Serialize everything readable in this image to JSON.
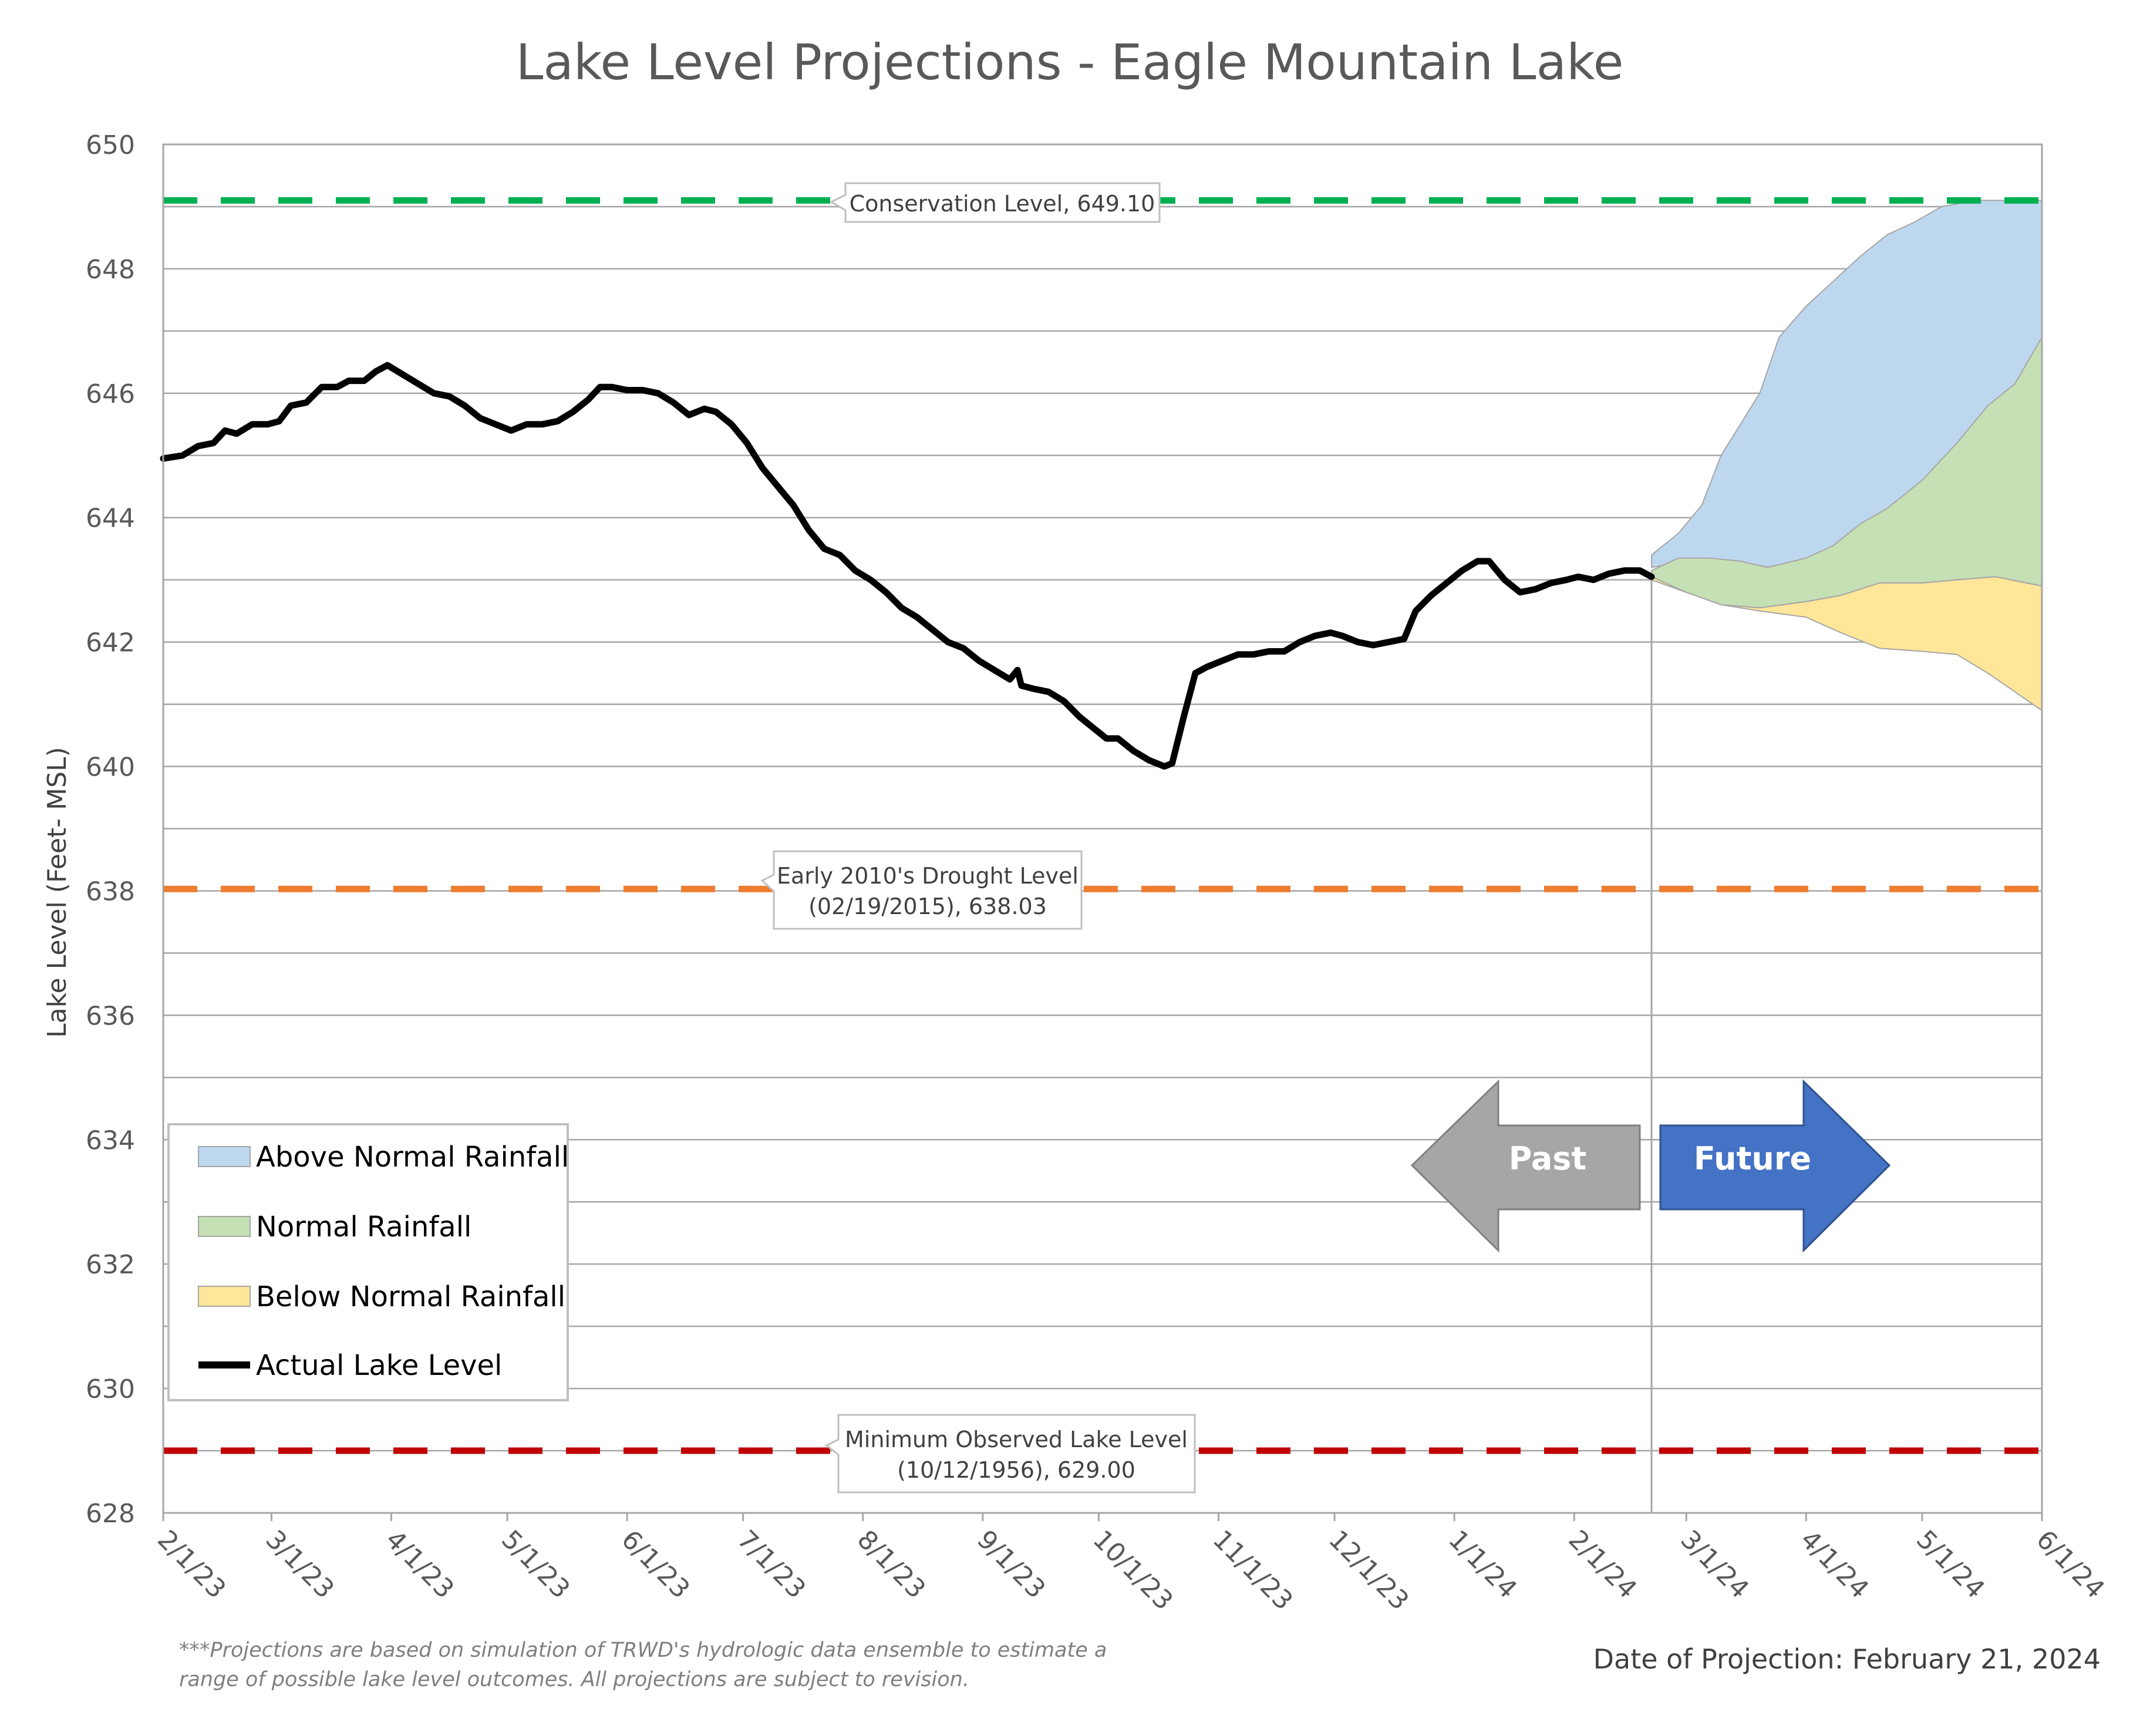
{
  "chart_data": {
    "type": "line",
    "title": "Lake Level Projections - Eagle Mountain Lake",
    "ylabel": "Lake Level (Feet- MSL)",
    "xlabel": "",
    "ylim": [
      628,
      650
    ],
    "yticks": [
      "628",
      "630",
      "632",
      "634",
      "636",
      "638",
      "640",
      "642",
      "644",
      "646",
      "648",
      "650"
    ],
    "x_dates": [
      "2023-02-01",
      "2023-03-01",
      "2023-04-01",
      "2023-05-01",
      "2023-06-01",
      "2023-07-01",
      "2023-08-01",
      "2023-09-01",
      "2023-10-01",
      "2023-11-01",
      "2023-12-01",
      "2024-01-01",
      "2024-02-01",
      "2024-03-01",
      "2024-04-01",
      "2024-05-01",
      "2024-06-01"
    ],
    "xtick_labels": [
      "2/1/23",
      "3/1/23",
      "4/1/23",
      "5/1/23",
      "6/1/23",
      "7/1/23",
      "8/1/23",
      "9/1/23",
      "10/1/23",
      "11/1/23",
      "12/1/23",
      "1/1/24",
      "2/1/24",
      "3/1/24",
      "4/1/24",
      "5/1/24",
      "6/1/24"
    ],
    "grid": true,
    "projection_date": "2024-02-21",
    "reference_lines": [
      {
        "name": "Conservation Level",
        "value": 649.1,
        "color": "#00b050",
        "label": "Conservation Level, 649.10"
      },
      {
        "name": "Early 2010's Drought Level",
        "value": 638.03,
        "color": "#ed7d31",
        "label_line1": "Early 2010's Drought Level",
        "label_line2": "(02/19/2015), 638.03"
      },
      {
        "name": "Minimum Observed Lake Level",
        "value": 629.0,
        "color": "#c00000",
        "label_line1": "Minimum Observed Lake Level",
        "label_line2": "(10/12/1956), 629.00"
      }
    ],
    "actual": {
      "name": "Actual Lake Level",
      "color": "#000000",
      "points": [
        [
          "2023-02-01",
          644.95
        ],
        [
          "2023-02-06",
          645.0
        ],
        [
          "2023-02-10",
          645.15
        ],
        [
          "2023-02-14",
          645.2
        ],
        [
          "2023-02-17",
          645.4
        ],
        [
          "2023-02-20",
          645.35
        ],
        [
          "2023-02-24",
          645.5
        ],
        [
          "2023-02-28",
          645.5
        ],
        [
          "2023-03-03",
          645.55
        ],
        [
          "2023-03-06",
          645.8
        ],
        [
          "2023-03-10",
          645.85
        ],
        [
          "2023-03-14",
          646.1
        ],
        [
          "2023-03-18",
          646.1
        ],
        [
          "2023-03-21",
          646.2
        ],
        [
          "2023-03-25",
          646.2
        ],
        [
          "2023-03-28",
          646.35
        ],
        [
          "2023-03-31",
          646.45
        ],
        [
          "2023-04-04",
          646.3
        ],
        [
          "2023-04-08",
          646.15
        ],
        [
          "2023-04-12",
          646.0
        ],
        [
          "2023-04-16",
          645.95
        ],
        [
          "2023-04-20",
          645.8
        ],
        [
          "2023-04-24",
          645.6
        ],
        [
          "2023-04-28",
          645.5
        ],
        [
          "2023-05-02",
          645.4
        ],
        [
          "2023-05-06",
          645.5
        ],
        [
          "2023-05-10",
          645.5
        ],
        [
          "2023-05-14",
          645.55
        ],
        [
          "2023-05-18",
          645.7
        ],
        [
          "2023-05-22",
          645.9
        ],
        [
          "2023-05-25",
          646.1
        ],
        [
          "2023-05-28",
          646.1
        ],
        [
          "2023-06-01",
          646.05
        ],
        [
          "2023-06-05",
          646.05
        ],
        [
          "2023-06-09",
          646.0
        ],
        [
          "2023-06-13",
          645.85
        ],
        [
          "2023-06-17",
          645.65
        ],
        [
          "2023-06-21",
          645.75
        ],
        [
          "2023-06-24",
          645.7
        ],
        [
          "2023-06-28",
          645.5
        ],
        [
          "2023-07-02",
          645.2
        ],
        [
          "2023-07-06",
          644.8
        ],
        [
          "2023-07-10",
          644.5
        ],
        [
          "2023-07-14",
          644.2
        ],
        [
          "2023-07-18",
          643.8
        ],
        [
          "2023-07-22",
          643.5
        ],
        [
          "2023-07-26",
          643.4
        ],
        [
          "2023-07-30",
          643.15
        ],
        [
          "2023-08-03",
          643.0
        ],
        [
          "2023-08-07",
          642.8
        ],
        [
          "2023-08-11",
          642.55
        ],
        [
          "2023-08-15",
          642.4
        ],
        [
          "2023-08-19",
          642.2
        ],
        [
          "2023-08-23",
          642.0
        ],
        [
          "2023-08-27",
          641.9
        ],
        [
          "2023-08-31",
          641.7
        ],
        [
          "2023-09-04",
          641.55
        ],
        [
          "2023-09-08",
          641.4
        ],
        [
          "2023-09-10",
          641.55
        ],
        [
          "2023-09-11",
          641.3
        ],
        [
          "2023-09-14",
          641.25
        ],
        [
          "2023-09-18",
          641.2
        ],
        [
          "2023-09-22",
          641.05
        ],
        [
          "2023-09-26",
          640.8
        ],
        [
          "2023-09-30",
          640.6
        ],
        [
          "2023-10-03",
          640.45
        ],
        [
          "2023-10-06",
          640.45
        ],
        [
          "2023-10-10",
          640.25
        ],
        [
          "2023-10-14",
          640.1
        ],
        [
          "2023-10-18",
          640.0
        ],
        [
          "2023-10-20",
          640.05
        ],
        [
          "2023-10-23",
          640.8
        ],
        [
          "2023-10-26",
          641.5
        ],
        [
          "2023-10-29",
          641.6
        ],
        [
          "2023-11-02",
          641.7
        ],
        [
          "2023-11-06",
          641.8
        ],
        [
          "2023-11-10",
          641.8
        ],
        [
          "2023-11-14",
          641.85
        ],
        [
          "2023-11-18",
          641.85
        ],
        [
          "2023-11-22",
          642.0
        ],
        [
          "2023-11-26",
          642.1
        ],
        [
          "2023-11-30",
          642.15
        ],
        [
          "2023-12-03",
          642.1
        ],
        [
          "2023-12-07",
          642.0
        ],
        [
          "2023-12-11",
          641.95
        ],
        [
          "2023-12-15",
          642.0
        ],
        [
          "2023-12-19",
          642.05
        ],
        [
          "2023-12-22",
          642.5
        ],
        [
          "2023-12-26",
          642.75
        ],
        [
          "2023-12-30",
          642.95
        ],
        [
          "2024-01-03",
          643.15
        ],
        [
          "2024-01-07",
          643.3
        ],
        [
          "2024-01-10",
          643.3
        ],
        [
          "2024-01-14",
          643.0
        ],
        [
          "2024-01-18",
          642.8
        ],
        [
          "2024-01-22",
          642.85
        ],
        [
          "2024-01-26",
          642.95
        ],
        [
          "2024-01-30",
          643.0
        ],
        [
          "2024-02-02",
          643.05
        ],
        [
          "2024-02-06",
          643.0
        ],
        [
          "2024-02-10",
          643.1
        ],
        [
          "2024-02-14",
          643.15
        ],
        [
          "2024-02-18",
          643.15
        ],
        [
          "2024-02-21",
          643.05
        ]
      ]
    },
    "series": [
      {
        "name": "Above Normal Rainfall",
        "fill": "#bdd7ee",
        "stroke": "#a6a6a6",
        "points": [
          [
            "2024-02-21",
            643.4
          ],
          [
            "2024-02-28",
            643.75
          ],
          [
            "2024-03-05",
            644.2
          ],
          [
            "2024-03-10",
            645.0
          ],
          [
            "2024-03-15",
            645.5
          ],
          [
            "2024-03-20",
            646.0
          ],
          [
            "2024-03-25",
            646.9
          ],
          [
            "2024-04-01",
            647.4
          ],
          [
            "2024-04-08",
            647.8
          ],
          [
            "2024-04-15",
            648.2
          ],
          [
            "2024-04-22",
            648.55
          ],
          [
            "2024-04-29",
            648.75
          ],
          [
            "2024-05-06",
            649.0
          ],
          [
            "2024-05-15",
            649.1
          ],
          [
            "2024-06-01",
            649.1
          ]
        ]
      },
      {
        "name": "Normal Rainfall",
        "fill": "#c5e0b4",
        "stroke": "#a6a6a6",
        "points": [
          [
            "2024-02-21",
            643.15
          ],
          [
            "2024-02-28",
            643.35
          ],
          [
            "2024-03-07",
            643.35
          ],
          [
            "2024-03-15",
            643.3
          ],
          [
            "2024-03-22",
            643.2
          ],
          [
            "2024-04-01",
            643.35
          ],
          [
            "2024-04-08",
            643.55
          ],
          [
            "2024-04-15",
            643.9
          ],
          [
            "2024-04-22",
            644.15
          ],
          [
            "2024-05-01",
            644.6
          ],
          [
            "2024-05-10",
            645.2
          ],
          [
            "2024-05-18",
            645.8
          ],
          [
            "2024-05-25",
            646.15
          ],
          [
            "2024-06-01",
            646.9
          ]
        ]
      },
      {
        "name": "Below Normal Rainfall",
        "fill": "#ffe699",
        "stroke": "#a6a6a6",
        "points": [
          [
            "2024-02-21",
            643.05
          ],
          [
            "2024-03-01",
            642.8
          ],
          [
            "2024-03-10",
            642.6
          ],
          [
            "2024-03-20",
            642.5
          ],
          [
            "2024-04-01",
            642.4
          ],
          [
            "2024-04-10",
            642.15
          ],
          [
            "2024-04-20",
            641.9
          ],
          [
            "2024-05-01",
            641.85
          ],
          [
            "2024-05-10",
            641.8
          ],
          [
            "2024-05-18",
            641.5
          ],
          [
            "2024-05-25",
            641.2
          ],
          [
            "2024-06-01",
            640.9
          ]
        ]
      }
    ],
    "band_lows": {
      "above_low": [
        [
          "2024-02-21",
          643.2
        ],
        [
          "2024-03-01",
          643.3
        ],
        [
          "2024-03-10",
          643.3
        ],
        [
          "2024-03-20",
          643.2
        ],
        [
          "2024-04-01",
          643.25
        ],
        [
          "2024-04-10",
          643.5
        ],
        [
          "2024-04-20",
          643.7
        ],
        [
          "2024-05-01",
          643.85
        ],
        [
          "2024-05-10",
          643.95
        ],
        [
          "2024-05-20",
          643.95
        ],
        [
          "2024-06-01",
          643.0
        ]
      ],
      "normal_low": [
        [
          "2024-02-21",
          643.0
        ],
        [
          "2024-03-01",
          642.8
        ],
        [
          "2024-03-10",
          642.6
        ],
        [
          "2024-03-20",
          642.55
        ],
        [
          "2024-04-01",
          642.65
        ],
        [
          "2024-04-10",
          642.75
        ],
        [
          "2024-04-20",
          642.95
        ],
        [
          "2024-05-01",
          642.95
        ],
        [
          "2024-05-10",
          643.0
        ],
        [
          "2024-05-20",
          643.05
        ],
        [
          "2024-06-01",
          642.9
        ]
      ]
    },
    "legend": {
      "items": [
        {
          "label": "Above Normal Rainfall",
          "type": "fill",
          "color": "#bdd7ee"
        },
        {
          "label": "Normal Rainfall",
          "type": "fill",
          "color": "#c5e0b4"
        },
        {
          "label": "Below Normal Rainfall",
          "type": "fill",
          "color": "#ffe699"
        },
        {
          "label": "Actual Lake Level",
          "type": "line",
          "color": "#000000"
        }
      ]
    },
    "arrows": {
      "past": {
        "label": "Past",
        "color": "#a6a6a6"
      },
      "future": {
        "label": "Future",
        "color": "#4472c4"
      }
    }
  },
  "footnote": {
    "line1": "***Projections are based on simulation of TRWD's hydrologic data ensemble to estimate a",
    "line2": "range of possible lake level outcomes.  All projections are subject to revision."
  },
  "projection_note": "Date of Projection: February 21, 2024"
}
